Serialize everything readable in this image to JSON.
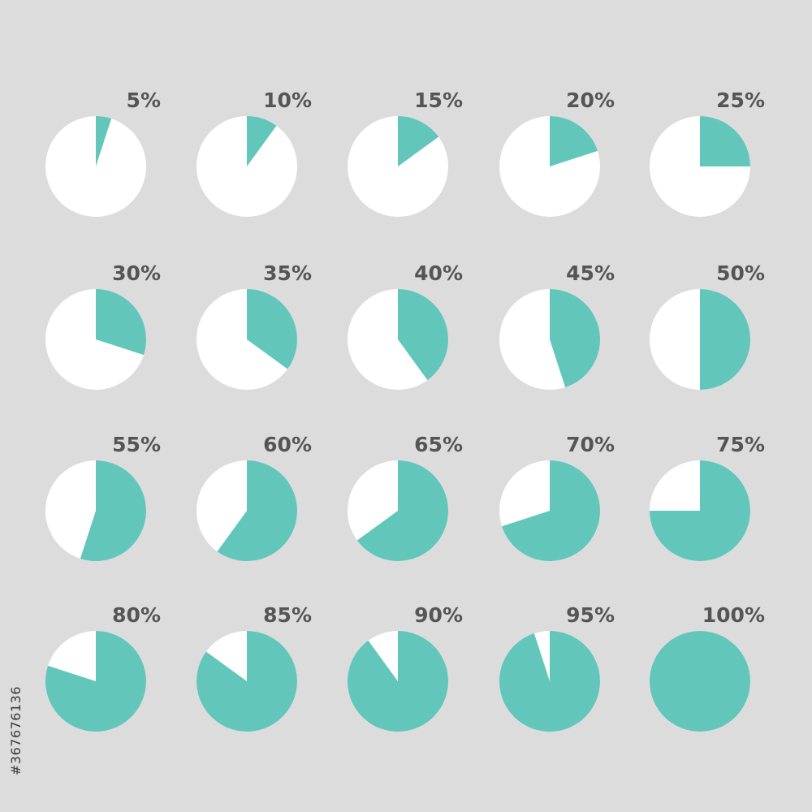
{
  "chart_data": {
    "type": "pie",
    "title": "",
    "grid": false,
    "legend": "none",
    "charts": [
      {
        "label": "5%",
        "value": 5
      },
      {
        "label": "10%",
        "value": 10
      },
      {
        "label": "15%",
        "value": 15
      },
      {
        "label": "20%",
        "value": 20
      },
      {
        "label": "25%",
        "value": 25
      },
      {
        "label": "30%",
        "value": 30
      },
      {
        "label": "35%",
        "value": 35
      },
      {
        "label": "40%",
        "value": 40
      },
      {
        "label": "45%",
        "value": 45
      },
      {
        "label": "50%",
        "value": 50
      },
      {
        "label": "55%",
        "value": 55
      },
      {
        "label": "60%",
        "value": 60
      },
      {
        "label": "65%",
        "value": 65
      },
      {
        "label": "70%",
        "value": 70
      },
      {
        "label": "75%",
        "value": 75
      },
      {
        "label": "80%",
        "value": 80
      },
      {
        "label": "85%",
        "value": 85
      },
      {
        "label": "90%",
        "value": 90
      },
      {
        "label": "95%",
        "value": 95
      },
      {
        "label": "100%",
        "value": 100
      }
    ]
  },
  "colors": {
    "background": "#dcdcdc",
    "filled": "#63c6bb",
    "empty": "#ffffff",
    "label": "#555555",
    "watermark_id": "#3a3a3a"
  },
  "watermark": {
    "stock_id": "#367676136"
  }
}
